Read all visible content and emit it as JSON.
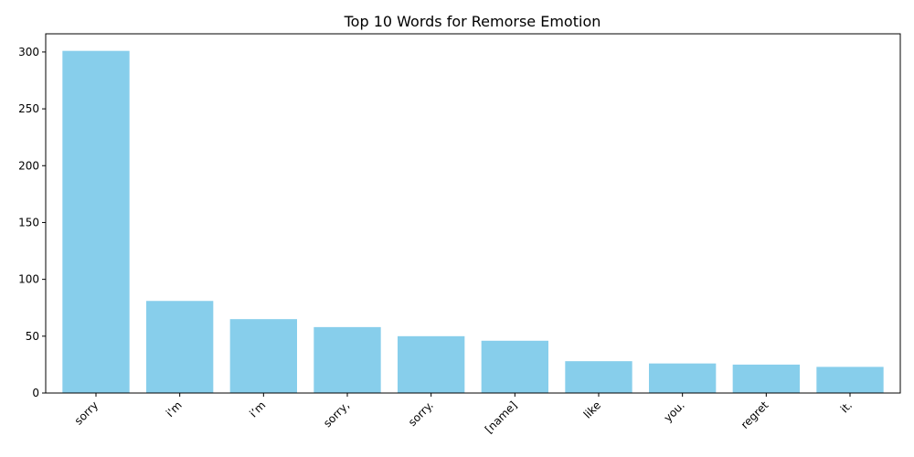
{
  "chart_data": {
    "type": "bar",
    "title": "Top 10 Words for Remorse Emotion",
    "xlabel": "",
    "ylabel": "",
    "categories": [
      "sorry",
      "i'm",
      "i’m",
      "sorry,",
      "sorry.",
      "[name]",
      "like",
      "you.",
      "regret",
      "it."
    ],
    "values": [
      301,
      81,
      65,
      58,
      50,
      46,
      28,
      26,
      25,
      23
    ],
    "ylim": [
      0,
      316
    ],
    "yticks": [
      0,
      50,
      100,
      150,
      200,
      250,
      300
    ],
    "bar_color": "#87ceeb",
    "grid": false,
    "legend": "none"
  }
}
